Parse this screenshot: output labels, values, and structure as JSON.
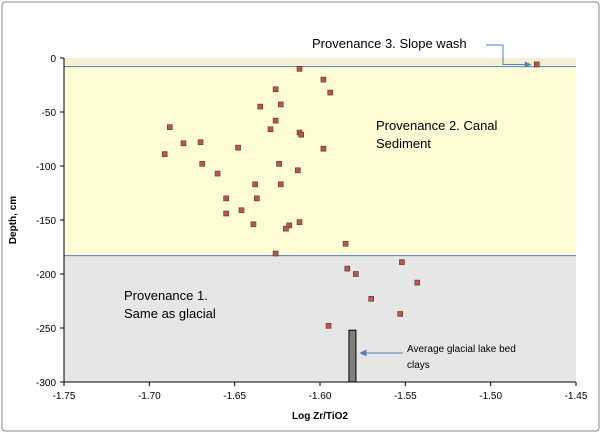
{
  "chart_data": {
    "type": "scatter",
    "title": "",
    "xlabel": "Log Zr/TiO2",
    "ylabel": "Depth, cm",
    "xlim": [
      -1.75,
      -1.45
    ],
    "ylim": [
      -300,
      0
    ],
    "x_ticks": [
      "-1.75",
      "-1.70",
      "-1.65",
      "-1.60",
      "-1.55",
      "-1.50",
      "-1.45"
    ],
    "y_ticks": [
      "0",
      "-50",
      "-100",
      "-150",
      "-200",
      "-250",
      "-300"
    ],
    "x_tick_values": [
      -1.75,
      -1.7,
      -1.65,
      -1.6,
      -1.55,
      -1.5,
      -1.45
    ],
    "y_tick_values": [
      0,
      -50,
      -100,
      -150,
      -200,
      -250,
      -300
    ],
    "grid": false,
    "legend": "none",
    "zones": [
      {
        "name": "Provenance 3",
        "y_from": 0,
        "y_to": -8,
        "color": "#f3f0d6"
      },
      {
        "name": "Provenance 2",
        "y_from": -8,
        "y_to": -183,
        "color": "#fdfcd5"
      },
      {
        "name": "Provenance 1",
        "y_from": -183,
        "y_to": -300,
        "color": "#e6e6e6"
      }
    ],
    "points": [
      {
        "x": -1.473,
        "y": -6
      },
      {
        "x": -1.612,
        "y": -10
      },
      {
        "x": -1.598,
        "y": -20
      },
      {
        "x": -1.594,
        "y": -32
      },
      {
        "x": -1.626,
        "y": -29
      },
      {
        "x": -1.623,
        "y": -43
      },
      {
        "x": -1.635,
        "y": -45
      },
      {
        "x": -1.626,
        "y": -58
      },
      {
        "x": -1.629,
        "y": -66
      },
      {
        "x": -1.612,
        "y": -69
      },
      {
        "x": -1.611,
        "y": -71
      },
      {
        "x": -1.688,
        "y": -64
      },
      {
        "x": -1.68,
        "y": -79
      },
      {
        "x": -1.67,
        "y": -78
      },
      {
        "x": -1.691,
        "y": -89
      },
      {
        "x": -1.648,
        "y": -83
      },
      {
        "x": -1.598,
        "y": -84
      },
      {
        "x": -1.669,
        "y": -98
      },
      {
        "x": -1.624,
        "y": -98
      },
      {
        "x": -1.66,
        "y": -107
      },
      {
        "x": -1.613,
        "y": -104
      },
      {
        "x": -1.638,
        "y": -117
      },
      {
        "x": -1.623,
        "y": -117
      },
      {
        "x": -1.655,
        "y": -130
      },
      {
        "x": -1.637,
        "y": -130
      },
      {
        "x": -1.655,
        "y": -144
      },
      {
        "x": -1.646,
        "y": -141
      },
      {
        "x": -1.612,
        "y": -152
      },
      {
        "x": -1.639,
        "y": -154
      },
      {
        "x": -1.618,
        "y": -155
      },
      {
        "x": -1.62,
        "y": -158
      },
      {
        "x": -1.626,
        "y": -181
      },
      {
        "x": -1.585,
        "y": -172
      },
      {
        "x": -1.584,
        "y": -195
      },
      {
        "x": -1.579,
        "y": -200
      },
      {
        "x": -1.552,
        "y": -189
      },
      {
        "x": -1.543,
        "y": -208
      },
      {
        "x": -1.57,
        "y": -223
      },
      {
        "x": -1.553,
        "y": -237
      },
      {
        "x": -1.595,
        "y": -248
      }
    ],
    "point_color": "#b05a50",
    "bar": {
      "x": -1.581,
      "y_from": -252,
      "y_to": -300,
      "color": "#7f7f7f"
    }
  },
  "annotations": {
    "provenance3": "Provenance 3.  Slope wash",
    "provenance2_line1": "Provenance 2.  Canal",
    "provenance2_line2": "Sediment",
    "provenance1_line1": "Provenance 1.",
    "provenance1_line2": "Same as glacial",
    "bar_label_line1": "Average glacial lake bed",
    "bar_label_line2": "clays",
    "arrow_color": "#4f81bd"
  }
}
